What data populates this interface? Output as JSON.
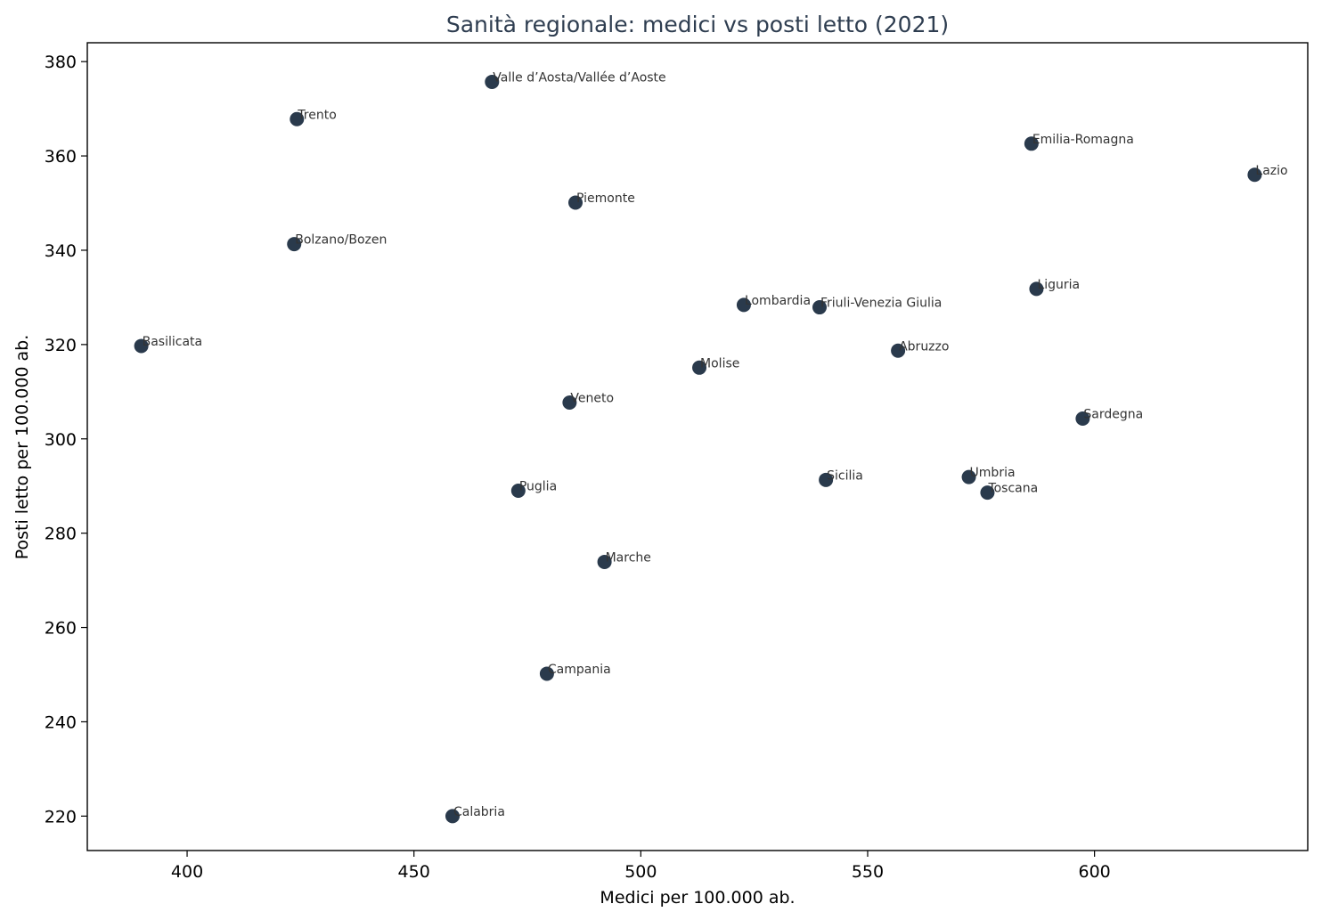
{
  "chart_data": {
    "type": "scatter",
    "title": "Sanità regionale: medici vs posti letto (2021)",
    "xlabel": "Medici per 100.000 ab.",
    "ylabel": "Posti letto per 100.000 ab.",
    "xlim": [
      378,
      647
    ],
    "ylim": [
      212.7,
      384
    ],
    "xticks": [
      400,
      450,
      500,
      550,
      600
    ],
    "yticks": [
      220,
      240,
      260,
      280,
      300,
      320,
      340,
      360,
      380
    ],
    "grid": false,
    "point_color": "#2a3a4c",
    "title_color": "#2e3d50",
    "points": [
      {
        "label": "Valle d’Aosta/Vallée d’Aoste",
        "x": 467.2,
        "y": 375.7
      },
      {
        "label": "Trento",
        "x": 424.2,
        "y": 367.8
      },
      {
        "label": "Emilia-Romagna",
        "x": 586.1,
        "y": 362.6
      },
      {
        "label": "Lazio",
        "x": 635.3,
        "y": 356.0
      },
      {
        "label": "Piemonte",
        "x": 485.6,
        "y": 350.1
      },
      {
        "label": "Bolzano/Bozen",
        "x": 423.6,
        "y": 341.3
      },
      {
        "label": "Liguria",
        "x": 587.2,
        "y": 331.8
      },
      {
        "label": "Lombardia",
        "x": 522.7,
        "y": 328.4
      },
      {
        "label": "Friuli-Venezia Giulia",
        "x": 539.4,
        "y": 327.9
      },
      {
        "label": "Basilicata",
        "x": 389.9,
        "y": 319.7
      },
      {
        "label": "Abruzzo",
        "x": 556.7,
        "y": 318.7
      },
      {
        "label": "Molise",
        "x": 512.9,
        "y": 315.1
      },
      {
        "label": "Veneto",
        "x": 484.3,
        "y": 307.7
      },
      {
        "label": "Sardegna",
        "x": 597.4,
        "y": 304.3
      },
      {
        "label": "Umbria",
        "x": 572.3,
        "y": 291.9
      },
      {
        "label": "Sicilia",
        "x": 540.8,
        "y": 291.3
      },
      {
        "label": "Puglia",
        "x": 473.0,
        "y": 289.0
      },
      {
        "label": "Toscana",
        "x": 576.4,
        "y": 288.6
      },
      {
        "label": "Marche",
        "x": 492.0,
        "y": 273.9
      },
      {
        "label": "Campania",
        "x": 479.3,
        "y": 250.2
      },
      {
        "label": "Calabria",
        "x": 458.5,
        "y": 220.0
      }
    ]
  }
}
